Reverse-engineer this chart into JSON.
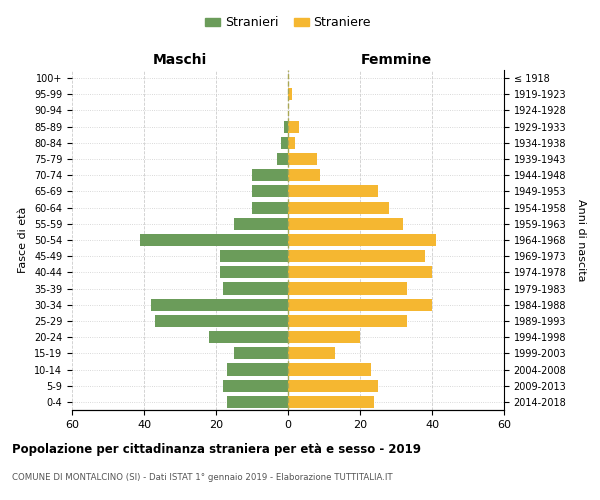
{
  "age_groups": [
    "0-4",
    "5-9",
    "10-14",
    "15-19",
    "20-24",
    "25-29",
    "30-34",
    "35-39",
    "40-44",
    "45-49",
    "50-54",
    "55-59",
    "60-64",
    "65-69",
    "70-74",
    "75-79",
    "80-84",
    "85-89",
    "90-94",
    "95-99",
    "100+"
  ],
  "birth_years": [
    "2014-2018",
    "2009-2013",
    "2004-2008",
    "1999-2003",
    "1994-1998",
    "1989-1993",
    "1984-1988",
    "1979-1983",
    "1974-1978",
    "1969-1973",
    "1964-1968",
    "1959-1963",
    "1954-1958",
    "1949-1953",
    "1944-1948",
    "1939-1943",
    "1934-1938",
    "1929-1933",
    "1924-1928",
    "1919-1923",
    "≤ 1918"
  ],
  "males": [
    17,
    18,
    17,
    15,
    22,
    37,
    38,
    18,
    19,
    19,
    41,
    15,
    10,
    10,
    10,
    3,
    2,
    1,
    0,
    0,
    0
  ],
  "females": [
    24,
    25,
    23,
    13,
    20,
    33,
    40,
    33,
    40,
    38,
    41,
    32,
    28,
    25,
    9,
    8,
    2,
    3,
    0,
    1,
    0
  ],
  "male_color": "#6b9c5a",
  "female_color": "#f5b731",
  "background_color": "#ffffff",
  "grid_color": "#cccccc",
  "title": "Popolazione per cittadinanza straniera per età e sesso - 2019",
  "subtitle": "COMUNE DI MONTALCINO (SI) - Dati ISTAT 1° gennaio 2019 - Elaborazione TUTTITALIA.IT",
  "legend_male": "Stranieri",
  "legend_female": "Straniere",
  "xlabel_left": "Maschi",
  "xlabel_right": "Femmine",
  "ylabel_left": "Fasce di età",
  "ylabel_right": "Anni di nascita",
  "xlim": 60,
  "center_line_color": "#aaa855"
}
